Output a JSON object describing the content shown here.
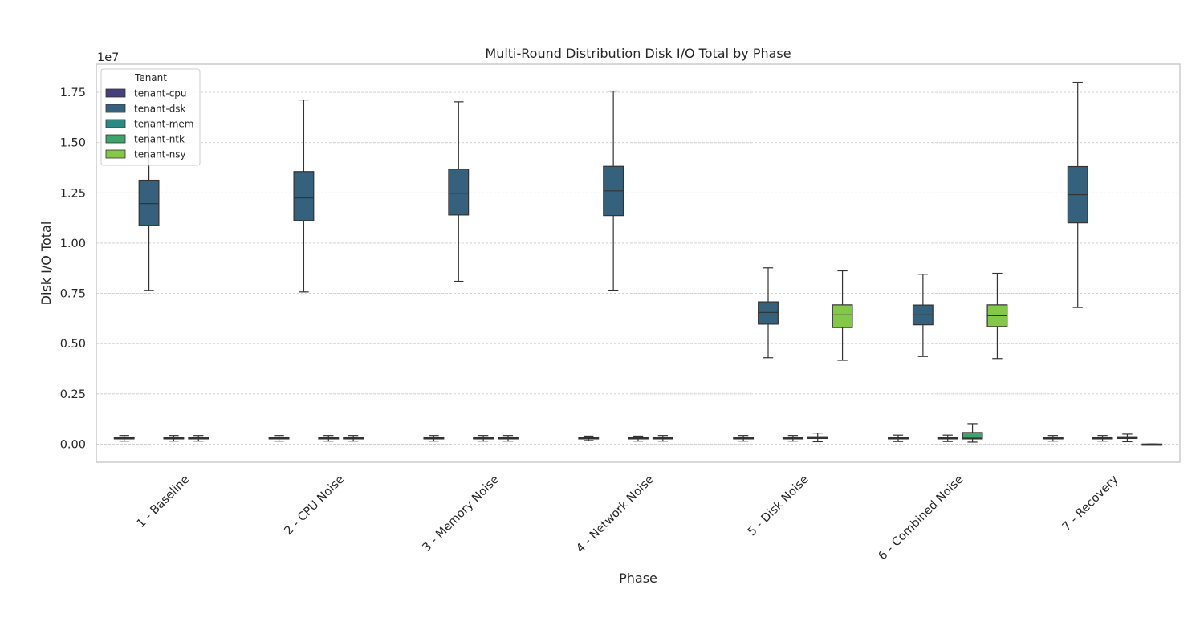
{
  "chart_data": {
    "type": "box",
    "title": "Multi-Round Distribution Disk I/O Total by Phase",
    "xlabel": "Phase",
    "ylabel": "Disk I/O Total",
    "y_offset_label": "1e7",
    "ylim": [
      -0.09,
      1.89
    ],
    "yticks": [
      0.0,
      0.25,
      0.5,
      0.75,
      1.0,
      1.25,
      1.5,
      1.75
    ],
    "ytick_labels": [
      "0.00",
      "0.25",
      "0.50",
      "0.75",
      "1.00",
      "1.25",
      "1.50",
      "1.75"
    ],
    "grid": true,
    "legend_title": "Tenant",
    "legend_position": "top-left",
    "categories": [
      "1 - Baseline",
      "2 - CPU Noise",
      "3 - Memory Noise",
      "4 - Network Noise",
      "5 - Disk Noise",
      "6 - Combined Noise",
      "7 - Recovery"
    ],
    "series": [
      {
        "name": "tenant-cpu",
        "color": "#45407a",
        "boxes": [
          {
            "whislo": 0.015,
            "q1": 0.026,
            "median": 0.029,
            "q3": 0.032,
            "whishi": 0.043
          },
          {
            "whislo": 0.015,
            "q1": 0.026,
            "median": 0.029,
            "q3": 0.032,
            "whishi": 0.043
          },
          {
            "whislo": 0.015,
            "q1": 0.026,
            "median": 0.029,
            "q3": 0.032,
            "whishi": 0.043
          },
          {
            "whislo": 0.018,
            "q1": 0.026,
            "median": 0.029,
            "q3": 0.032,
            "whishi": 0.04
          },
          {
            "whislo": 0.015,
            "q1": 0.026,
            "median": 0.029,
            "q3": 0.032,
            "whishi": 0.043
          },
          {
            "whislo": 0.013,
            "q1": 0.026,
            "median": 0.029,
            "q3": 0.032,
            "whishi": 0.045
          },
          {
            "whislo": 0.015,
            "q1": 0.026,
            "median": 0.029,
            "q3": 0.032,
            "whishi": 0.043
          }
        ]
      },
      {
        "name": "tenant-dsk",
        "color": "#35617c",
        "boxes": [
          {
            "whislo": 0.765,
            "q1": 1.088,
            "median": 1.197,
            "q3": 1.313,
            "whishi": 1.605
          },
          {
            "whislo": 0.757,
            "q1": 1.112,
            "median": 1.225,
            "q3": 1.356,
            "whishi": 1.712
          },
          {
            "whislo": 0.81,
            "q1": 1.14,
            "median": 1.248,
            "q3": 1.368,
            "whishi": 1.703
          },
          {
            "whislo": 0.766,
            "q1": 1.137,
            "median": 1.26,
            "q3": 1.382,
            "whishi": 1.756
          },
          {
            "whislo": 0.43,
            "q1": 0.597,
            "median": 0.655,
            "q3": 0.708,
            "whishi": 0.877
          },
          {
            "whislo": 0.436,
            "q1": 0.594,
            "median": 0.643,
            "q3": 0.692,
            "whishi": 0.845
          },
          {
            "whislo": 0.68,
            "q1": 1.101,
            "median": 1.241,
            "q3": 1.381,
            "whishi": 1.8
          }
        ]
      },
      {
        "name": "tenant-mem",
        "color": "#2a8a83",
        "boxes": [
          {
            "whislo": 0.015,
            "q1": 0.026,
            "median": 0.029,
            "q3": 0.032,
            "whishi": 0.043
          },
          {
            "whislo": 0.015,
            "q1": 0.026,
            "median": 0.029,
            "q3": 0.032,
            "whishi": 0.043
          },
          {
            "whislo": 0.015,
            "q1": 0.026,
            "median": 0.029,
            "q3": 0.032,
            "whishi": 0.043
          },
          {
            "whislo": 0.015,
            "q1": 0.026,
            "median": 0.029,
            "q3": 0.032,
            "whishi": 0.04
          },
          {
            "whislo": 0.015,
            "q1": 0.026,
            "median": 0.029,
            "q3": 0.032,
            "whishi": 0.043
          },
          {
            "whislo": 0.013,
            "q1": 0.026,
            "median": 0.029,
            "q3": 0.032,
            "whishi": 0.045
          },
          {
            "whislo": 0.015,
            "q1": 0.026,
            "median": 0.029,
            "q3": 0.032,
            "whishi": 0.043
          }
        ]
      },
      {
        "name": "tenant-ntk",
        "color": "#3ba56b",
        "boxes": [
          {
            "whislo": 0.015,
            "q1": 0.026,
            "median": 0.029,
            "q3": 0.032,
            "whishi": 0.043
          },
          {
            "whislo": 0.015,
            "q1": 0.026,
            "median": 0.029,
            "q3": 0.032,
            "whishi": 0.043
          },
          {
            "whislo": 0.015,
            "q1": 0.026,
            "median": 0.029,
            "q3": 0.032,
            "whishi": 0.043
          },
          {
            "whislo": 0.015,
            "q1": 0.026,
            "median": 0.029,
            "q3": 0.032,
            "whishi": 0.043
          },
          {
            "whislo": 0.012,
            "q1": 0.028,
            "median": 0.032,
            "q3": 0.037,
            "whishi": 0.055
          },
          {
            "whislo": 0.01,
            "q1": 0.026,
            "median": 0.03,
            "q3": 0.058,
            "whishi": 0.102
          },
          {
            "whislo": 0.012,
            "q1": 0.028,
            "median": 0.032,
            "q3": 0.037,
            "whishi": 0.05
          }
        ]
      },
      {
        "name": "tenant-nsy",
        "color": "#84c84a",
        "boxes": [
          null,
          null,
          null,
          null,
          {
            "whislo": 0.417,
            "q1": 0.58,
            "median": 0.643,
            "q3": 0.693,
            "whishi": 0.862
          },
          {
            "whislo": 0.426,
            "q1": 0.585,
            "median": 0.639,
            "q3": 0.693,
            "whishi": 0.85
          },
          {
            "whislo": -0.001,
            "q1": -0.0005,
            "median": 0.0,
            "q3": 0.0005,
            "whishi": 0.001
          }
        ]
      }
    ]
  }
}
